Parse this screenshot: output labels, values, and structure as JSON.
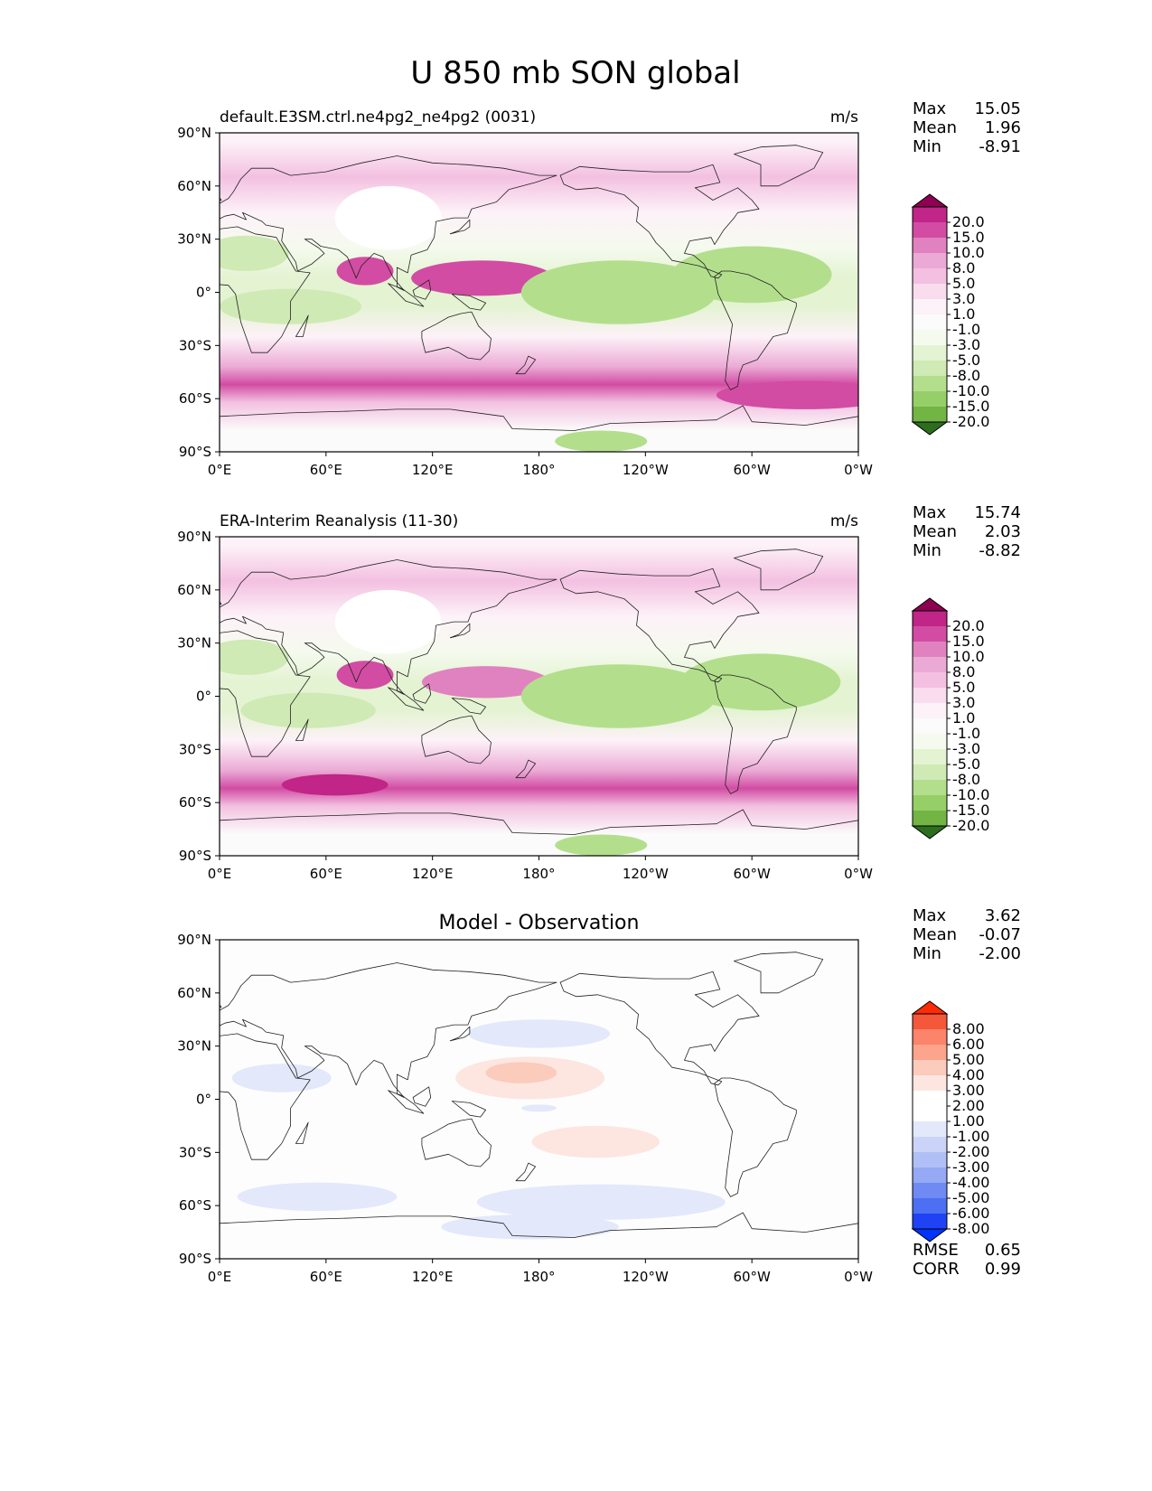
{
  "figure_title": "U 850 mb SON global",
  "colors": {
    "pos_scale": [
      "#fdf2f8",
      "#f9dcee",
      "#f3c0e1",
      "#ebaad5",
      "#e182c0",
      "#d24ca3",
      "#c02587",
      "#8e0152"
    ],
    "neg_scale": [
      "#f5faee",
      "#e4f3d2",
      "#cfeab4",
      "#b3df8c",
      "#96cf67",
      "#73b545",
      "#4e9430",
      "#2c6d1e"
    ],
    "diff_pos": [
      "#fde6df",
      "#fbcbbc",
      "#fca48c",
      "#fb846a",
      "#f5573b",
      "#ff2b06"
    ],
    "diff_neg": [
      "#e3e8fb",
      "#cbd4f8",
      "#b0c0f6",
      "#95a9f4",
      "#6f8af2",
      "#4d6ff2",
      "#1f42f5",
      "#0033ff"
    ]
  },
  "chart_data": [
    {
      "type": "map_contour",
      "title": "default.E3SM.ctrl.ne4pg2_ne4pg2 (0031)",
      "units": "m/s",
      "stats": {
        "max_label": "Max",
        "max": "15.05",
        "mean_label": "Mean",
        "mean": "1.96",
        "min_label": "Min",
        "min": "-8.91"
      },
      "colorbar_levels": [
        "20.0",
        "15.0",
        "10.0",
        "8.0",
        "5.0",
        "3.0",
        "1.0",
        "-1.0",
        "-3.0",
        "-5.0",
        "-8.0",
        "-10.0",
        "-15.0",
        "-20.0"
      ],
      "lat_ticks": [
        "90°N",
        "60°N",
        "30°N",
        "0°",
        "30°S",
        "60°S",
        "90°S"
      ],
      "lon_ticks": [
        "0°E",
        "60°E",
        "120°E",
        "180°",
        "120°W",
        "60°W",
        "0°W"
      ],
      "zonal_bands": [
        {
          "lat": 85,
          "level": 1
        },
        {
          "lat": 65,
          "level": 3
        },
        {
          "lat": 45,
          "level": 1
        },
        {
          "lat": 25,
          "level": -1
        },
        {
          "lat": 8,
          "level": -2
        },
        {
          "lat": -8,
          "level": -2
        },
        {
          "lat": -25,
          "level": 1
        },
        {
          "lat": -42,
          "level": 4
        },
        {
          "lat": -52,
          "level": 6
        },
        {
          "lat": -62,
          "level": 3
        },
        {
          "lat": -78,
          "level": 0
        }
      ],
      "features": [
        {
          "lon": 95,
          "lat": 42,
          "w": 30,
          "h": 18,
          "level": "missing"
        },
        {
          "lon": 148,
          "lat": 8,
          "w": 40,
          "h": 10,
          "level": 6
        },
        {
          "lon": 82,
          "lat": 12,
          "w": 16,
          "h": 8,
          "level": 6
        },
        {
          "lon": 225,
          "lat": 0,
          "w": 55,
          "h": 18,
          "level": -4
        },
        {
          "lon": 300,
          "lat": 10,
          "w": 45,
          "h": 16,
          "level": -4
        },
        {
          "lon": 40,
          "lat": -8,
          "w": 40,
          "h": 10,
          "level": -3
        },
        {
          "lon": 15,
          "lat": 22,
          "w": 24,
          "h": 10,
          "level": -3
        },
        {
          "lon": 215,
          "lat": -84,
          "w": 26,
          "h": 6,
          "level": -4
        },
        {
          "lon": 330,
          "lat": -58,
          "w": 50,
          "h": 8,
          "level": 6
        }
      ]
    },
    {
      "type": "map_contour",
      "title": "ERA-Interim Reanalysis (11-30)",
      "units": "m/s",
      "stats": {
        "max_label": "Max",
        "max": "15.74",
        "mean_label": "Mean",
        "mean": "2.03",
        "min_label": "Min",
        "min": "-8.82"
      },
      "colorbar_levels": [
        "20.0",
        "15.0",
        "10.0",
        "8.0",
        "5.0",
        "3.0",
        "1.0",
        "-1.0",
        "-3.0",
        "-5.0",
        "-8.0",
        "-10.0",
        "-15.0",
        "-20.0"
      ],
      "lat_ticks": [
        "90°N",
        "60°N",
        "30°N",
        "0°",
        "30°S",
        "60°S",
        "90°S"
      ],
      "lon_ticks": [
        "0°E",
        "60°E",
        "120°E",
        "180°",
        "120°W",
        "60°W",
        "0°W"
      ],
      "zonal_bands": [
        {
          "lat": 85,
          "level": 1
        },
        {
          "lat": 65,
          "level": 3
        },
        {
          "lat": 45,
          "level": 1
        },
        {
          "lat": 25,
          "level": -1
        },
        {
          "lat": 8,
          "level": -2
        },
        {
          "lat": -8,
          "level": -2
        },
        {
          "lat": -25,
          "level": 1
        },
        {
          "lat": -42,
          "level": 4
        },
        {
          "lat": -52,
          "level": 6
        },
        {
          "lat": -62,
          "level": 3
        },
        {
          "lat": -78,
          "level": 0
        }
      ],
      "features": [
        {
          "lon": 95,
          "lat": 42,
          "w": 30,
          "h": 18,
          "level": "missing"
        },
        {
          "lon": 150,
          "lat": 8,
          "w": 36,
          "h": 9,
          "level": 5
        },
        {
          "lon": 82,
          "lat": 12,
          "w": 16,
          "h": 8,
          "level": 6
        },
        {
          "lon": 225,
          "lat": 0,
          "w": 55,
          "h": 18,
          "level": -4
        },
        {
          "lon": 305,
          "lat": 8,
          "w": 45,
          "h": 16,
          "level": -4
        },
        {
          "lon": 50,
          "lat": -8,
          "w": 38,
          "h": 10,
          "level": -3
        },
        {
          "lon": 15,
          "lat": 22,
          "w": 24,
          "h": 10,
          "level": -3
        },
        {
          "lon": 215,
          "lat": -84,
          "w": 26,
          "h": 6,
          "level": -4
        },
        {
          "lon": 65,
          "lat": -50,
          "w": 30,
          "h": 6,
          "level": 7
        }
      ]
    },
    {
      "type": "map_contour",
      "title": "Model - Observation",
      "units": "",
      "stats": {
        "max_label": "Max",
        "max": "3.62",
        "mean_label": "Mean",
        "mean": "-0.07",
        "min_label": "Min",
        "min": "-2.00"
      },
      "colorbar_levels": [
        "8.00",
        "6.00",
        "5.00",
        "4.00",
        "3.00",
        "2.00",
        "1.00",
        "-1.00",
        "-2.00",
        "-3.00",
        "-4.00",
        "-5.00",
        "-6.00",
        "-8.00"
      ],
      "lat_ticks": [
        "90°N",
        "60°N",
        "30°N",
        "0°",
        "30°S",
        "60°S",
        "90°S"
      ],
      "lon_ticks": [
        "0°E",
        "60°E",
        "120°E",
        "180°",
        "120°W",
        "60°W",
        "0°W"
      ],
      "metrics": {
        "rmse_label": "RMSE",
        "rmse": "0.65",
        "corr_label": "CORR",
        "corr": "0.99"
      },
      "features": [
        {
          "lon": 175,
          "lat": 12,
          "w": 42,
          "h": 12,
          "level": 1
        },
        {
          "lon": 170,
          "lat": 15,
          "w": 20,
          "h": 6,
          "level": 2
        },
        {
          "lon": 212,
          "lat": -24,
          "w": 36,
          "h": 9,
          "level": 1
        },
        {
          "lon": 180,
          "lat": 37,
          "w": 40,
          "h": 8,
          "level": -1
        },
        {
          "lon": 35,
          "lat": 12,
          "w": 28,
          "h": 8,
          "level": -1
        },
        {
          "lon": 55,
          "lat": -55,
          "w": 45,
          "h": 8,
          "level": -1
        },
        {
          "lon": 215,
          "lat": -58,
          "w": 70,
          "h": 10,
          "level": -1
        },
        {
          "lon": 175,
          "lat": -72,
          "w": 50,
          "h": 7,
          "level": -1
        },
        {
          "lon": 180,
          "lat": -5,
          "w": 10,
          "h": 2,
          "level": -1
        }
      ]
    }
  ]
}
